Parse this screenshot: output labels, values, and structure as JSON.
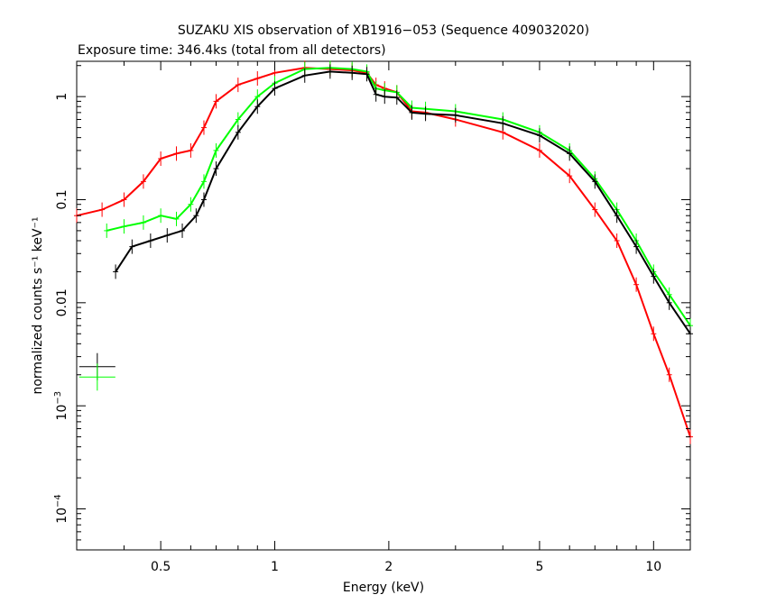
{
  "chart_data": {
    "type": "scatter",
    "title": "SUZAKU XIS observation of XB1916−053 (Sequence 409032020)",
    "subtitle": "Exposure time: 346.4ks (total from all detectors)",
    "xlabel": "Energy (keV)",
    "ylabel": "normalized counts s⁻¹ keV⁻¹",
    "xscale": "log",
    "yscale": "log",
    "xlim": [
      0.3,
      12.5
    ],
    "ylim": [
      4e-05,
      2.2
    ],
    "grid": false,
    "x_ticks": [
      {
        "value": 0.5,
        "label": "0.5"
      },
      {
        "value": 1,
        "label": "1"
      },
      {
        "value": 2,
        "label": "2"
      },
      {
        "value": 5,
        "label": "5"
      },
      {
        "value": 10,
        "label": "10"
      }
    ],
    "y_ticks": [
      {
        "value": 1,
        "label": "1"
      },
      {
        "value": 0.1,
        "label": "0.1"
      },
      {
        "value": 0.01,
        "label": "0.01"
      },
      {
        "value": 0.001,
        "label": "10",
        "exp": "−3"
      },
      {
        "value": 0.0001,
        "label": "10",
        "exp": "−4"
      }
    ],
    "series": [
      {
        "color": "#ff0000",
        "x": [
          0.3,
          0.35,
          0.4,
          0.45,
          0.5,
          0.55,
          0.6,
          0.65,
          0.7,
          0.8,
          0.9,
          1.0,
          1.2,
          1.4,
          1.6,
          1.75,
          1.85,
          1.95,
          2.1,
          2.3,
          2.5,
          3.0,
          4.0,
          5.0,
          6.0,
          7.0,
          8.0,
          9.0,
          10.0,
          11.0,
          12.5
        ],
        "y": [
          0.07,
          0.08,
          0.1,
          0.15,
          0.25,
          0.28,
          0.3,
          0.5,
          0.9,
          1.3,
          1.5,
          1.7,
          1.9,
          1.85,
          1.8,
          1.7,
          1.3,
          1.2,
          1.1,
          0.72,
          0.7,
          0.6,
          0.45,
          0.3,
          0.17,
          0.08,
          0.04,
          0.015,
          0.005,
          0.002,
          0.0005
        ]
      },
      {
        "color": "#00ff00",
        "x": [
          0.36,
          0.4,
          0.45,
          0.5,
          0.55,
          0.6,
          0.65,
          0.7,
          0.8,
          0.9,
          1.0,
          1.2,
          1.4,
          1.6,
          1.75,
          1.85,
          1.95,
          2.1,
          2.3,
          2.5,
          3.0,
          4.0,
          5.0,
          6.0,
          7.0,
          8.0,
          9.0,
          10.0,
          11.0,
          12.5
        ],
        "y": [
          0.05,
          0.055,
          0.06,
          0.07,
          0.065,
          0.09,
          0.15,
          0.3,
          0.6,
          1.0,
          1.35,
          1.85,
          1.9,
          1.85,
          1.75,
          1.2,
          1.15,
          1.1,
          0.78,
          0.76,
          0.72,
          0.6,
          0.45,
          0.3,
          0.16,
          0.08,
          0.04,
          0.02,
          0.012,
          0.006
        ]
      },
      {
        "color": "#000000",
        "x": [
          0.38,
          0.42,
          0.47,
          0.52,
          0.57,
          0.62,
          0.65,
          0.7,
          0.8,
          0.9,
          1.0,
          1.2,
          1.4,
          1.6,
          1.75,
          1.85,
          1.95,
          2.1,
          2.3,
          2.5,
          3.0,
          4.0,
          5.0,
          6.0,
          7.0,
          8.0,
          9.0,
          10.0,
          11.0,
          12.5
        ],
        "y": [
          0.02,
          0.035,
          0.04,
          0.045,
          0.05,
          0.07,
          0.1,
          0.2,
          0.45,
          0.8,
          1.2,
          1.6,
          1.75,
          1.7,
          1.65,
          1.05,
          1.0,
          0.98,
          0.7,
          0.68,
          0.66,
          0.55,
          0.42,
          0.28,
          0.15,
          0.07,
          0.035,
          0.018,
          0.01,
          0.005
        ]
      }
    ],
    "legend_markers": [
      {
        "color": "#000000",
        "x": 0.34,
        "y": 0.0024
      },
      {
        "color": "#00ff00",
        "x": 0.34,
        "y": 0.0019
      }
    ]
  }
}
